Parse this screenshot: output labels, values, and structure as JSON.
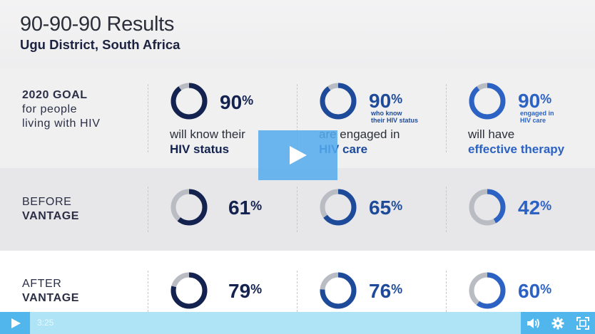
{
  "slide": {
    "title": "90-90-90 Results",
    "subtitle": "Ugu District, South Africa"
  },
  "rows": {
    "goal": {
      "label_line1": "2020 GOAL",
      "label_line2": "for people",
      "label_line3": "living with HIV"
    },
    "before": {
      "label_line1": "BEFORE",
      "label_line2": "VANTAGE"
    },
    "after": {
      "label_line1": "AFTER",
      "label_line2": "VANTAGE"
    }
  },
  "columns": [
    {
      "goal_value": "90",
      "goal_note": "",
      "caption_line1": "will know their",
      "caption_line2": "HIV status",
      "color": "#13224f",
      "before_value": "61",
      "after_value": "79"
    },
    {
      "goal_value": "90",
      "goal_note_line1": "who know",
      "goal_note_line2": "their HIV status",
      "caption_line1": "are engaged in",
      "caption_line2": "HIV care",
      "color": "#1e4a9a",
      "before_value": "65",
      "after_value": "76"
    },
    {
      "goal_value": "90",
      "goal_note_line1": "engaged in",
      "goal_note_line2": "HIV care",
      "caption_line1": "will have",
      "caption_line2": "effective therapy",
      "color": "#2b62c4",
      "before_value": "42",
      "after_value": "60"
    }
  ],
  "percent_symbol": "%",
  "player": {
    "time": "3:25",
    "play_icon": "play-icon",
    "volume_icon": "volume-icon",
    "settings_icon": "gear-icon",
    "fullscreen_icon": "fullscreen-icon",
    "accent": "#51b6ec",
    "bar": "#aee4f6"
  }
}
